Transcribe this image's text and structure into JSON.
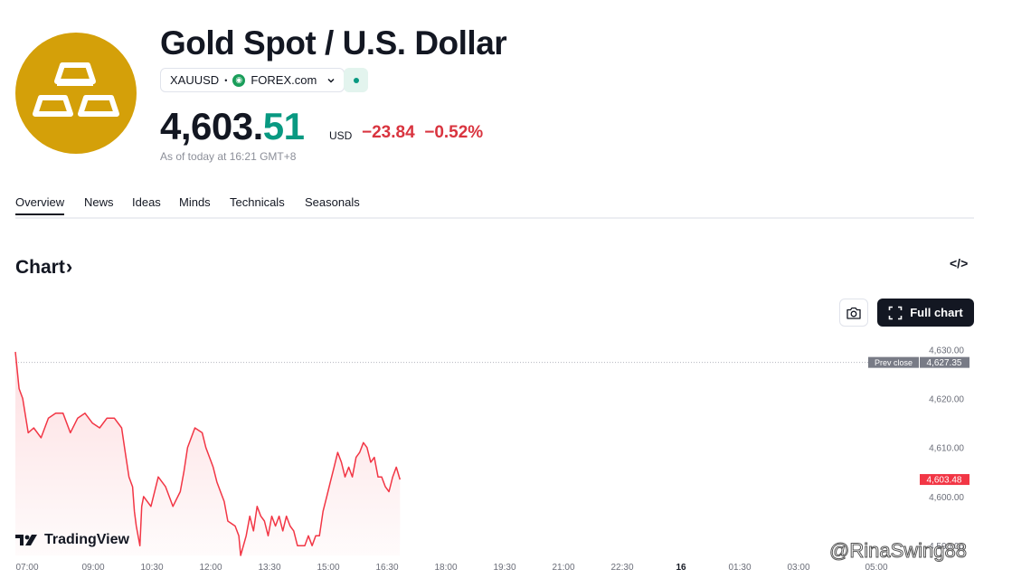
{
  "header": {
    "title": "Gold Spot / U.S. Dollar",
    "symbol": "XAUUSD",
    "separator": "•",
    "exchange": "FOREX.com",
    "price_int": "4,603.",
    "price_dec": "51",
    "currency": "USD",
    "change": "−23.84",
    "change_pct": "−0.52%",
    "as_of": "As of today at 16:21 GMT+8"
  },
  "tabs": [
    "Overview",
    "News",
    "Ideas",
    "Minds",
    "Technicals",
    "Seasonals"
  ],
  "section": {
    "title": "Chart",
    "chevron": "›",
    "embed": "</>"
  },
  "toolbar": {
    "full_chart": "Full chart"
  },
  "brand": {
    "name": "TradingView",
    "logo_text": "17"
  },
  "watermark": "@RinaSwing88",
  "colors": {
    "up": "#089981",
    "down": "#d9343f",
    "logo_bg": "#d4a009",
    "line": "#f23645"
  },
  "icons": [
    "gold-bars-icon",
    "forex-logo-icon",
    "chevron-down-icon",
    "status-dot-icon",
    "embed-code-icon",
    "camera-icon",
    "fullscreen-icon",
    "tradingview-logo-icon"
  ],
  "chart_data": {
    "type": "area",
    "x_ticks": [
      "07:00",
      "09:00",
      "10:30",
      "12:00",
      "13:30",
      "15:00",
      "16:30",
      "18:00",
      "19:30",
      "21:00",
      "22:30",
      "16",
      "01:30",
      "03:00",
      "05:00"
    ],
    "y_ticks": [
      "4,630.00",
      "4,620.00",
      "4,610.00",
      "4,600.00",
      "4,590.00"
    ],
    "ylim": [
      4588,
      4633
    ],
    "prev_close": {
      "label": "Prev close",
      "value": "4,627.35",
      "y": 4627.35
    },
    "last": {
      "value": "4,603.48",
      "y": 4603.48
    },
    "series": [
      {
        "values": [
          [
            0,
            4629.5
          ],
          [
            0.01,
            4622
          ],
          [
            0.02,
            4620
          ],
          [
            0.035,
            4613
          ],
          [
            0.05,
            4614
          ],
          [
            0.07,
            4612
          ],
          [
            0.09,
            4616
          ],
          [
            0.11,
            4617
          ],
          [
            0.13,
            4617
          ],
          [
            0.15,
            4613
          ],
          [
            0.17,
            4616
          ],
          [
            0.19,
            4617
          ],
          [
            0.21,
            4615
          ],
          [
            0.23,
            4614
          ],
          [
            0.25,
            4616
          ],
          [
            0.27,
            4616
          ],
          [
            0.29,
            4614
          ],
          [
            0.3,
            4609
          ],
          [
            0.31,
            4604
          ],
          [
            0.32,
            4602
          ],
          [
            0.325,
            4597
          ],
          [
            0.33,
            4594
          ],
          [
            0.34,
            4590
          ],
          [
            0.345,
            4598
          ],
          [
            0.35,
            4600
          ],
          [
            0.37,
            4598
          ],
          [
            0.39,
            4604
          ],
          [
            0.41,
            4602
          ],
          [
            0.43,
            4598
          ],
          [
            0.45,
            4601
          ],
          [
            0.46,
            4605
          ],
          [
            0.47,
            4610
          ],
          [
            0.49,
            4614
          ],
          [
            0.51,
            4613
          ],
          [
            0.52,
            4610
          ],
          [
            0.53,
            4608
          ],
          [
            0.54,
            4606
          ],
          [
            0.55,
            4603
          ],
          [
            0.56,
            4601
          ],
          [
            0.57,
            4599
          ],
          [
            0.58,
            4595
          ],
          [
            0.6,
            4594
          ],
          [
            0.61,
            4592
          ],
          [
            0.615,
            4588
          ],
          [
            0.63,
            4592
          ],
          [
            0.64,
            4596
          ],
          [
            0.65,
            4593
          ],
          [
            0.66,
            4598
          ],
          [
            0.67,
            4596
          ],
          [
            0.68,
            4595
          ],
          [
            0.69,
            4592
          ],
          [
            0.7,
            4596
          ],
          [
            0.71,
            4594
          ],
          [
            0.72,
            4596
          ],
          [
            0.73,
            4593
          ],
          [
            0.74,
            4596
          ],
          [
            0.75,
            4594
          ],
          [
            0.76,
            4593
          ],
          [
            0.77,
            4590
          ],
          [
            0.78,
            4590
          ],
          [
            0.79,
            4590
          ],
          [
            0.8,
            4592
          ],
          [
            0.81,
            4590
          ],
          [
            0.82,
            4592
          ],
          [
            0.83,
            4592
          ],
          [
            0.84,
            4597
          ],
          [
            0.85,
            4600
          ],
          [
            0.86,
            4603
          ],
          [
            0.87,
            4606
          ],
          [
            0.88,
            4609
          ],
          [
            0.89,
            4607
          ],
          [
            0.9,
            4604
          ],
          [
            0.91,
            4606
          ],
          [
            0.92,
            4604
          ],
          [
            0.93,
            4608
          ],
          [
            0.94,
            4609
          ],
          [
            0.95,
            4611
          ],
          [
            0.96,
            4610
          ],
          [
            0.97,
            4607
          ],
          [
            0.98,
            4608
          ],
          [
            0.99,
            4604
          ],
          [
            1.0,
            4604
          ],
          [
            1.01,
            4602
          ],
          [
            1.02,
            4601
          ],
          [
            1.03,
            4604
          ],
          [
            1.04,
            4606
          ],
          [
            1.05,
            4603.48
          ]
        ]
      }
    ]
  }
}
